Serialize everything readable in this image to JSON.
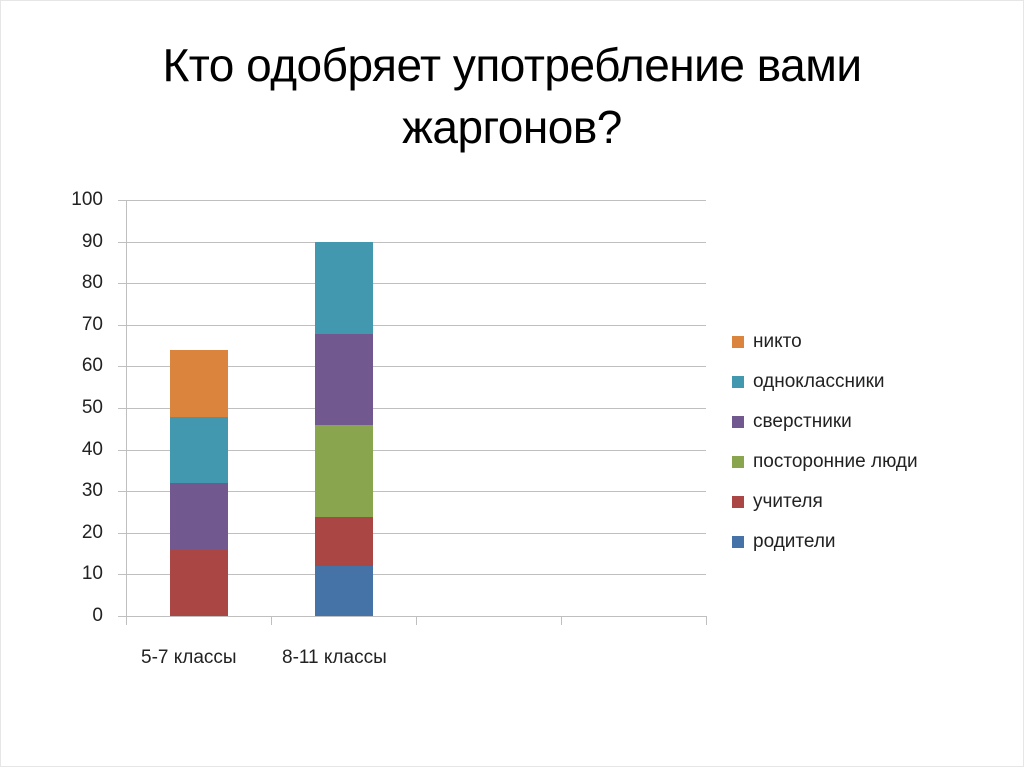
{
  "slide": {
    "title_lines": [
      "Кто одобряет употребление вами",
      "жаргонов?"
    ]
  },
  "chart_data": {
    "type": "bar",
    "stacked": true,
    "title": "Кто одобряет употребление вами жаргонов?",
    "xlabel": "",
    "ylabel": "",
    "ylim": [
      0,
      100
    ],
    "yticks": [
      0,
      10,
      20,
      30,
      40,
      50,
      60,
      70,
      80,
      90,
      100
    ],
    "grid": true,
    "legend_position": "right",
    "categories": [
      "5-7 классы",
      "8-11 классы",
      "",
      ""
    ],
    "series": [
      {
        "name": "родители",
        "color": "#4572A7",
        "values": [
          0,
          12,
          0,
          0
        ]
      },
      {
        "name": "учителя",
        "color": "#AA4643",
        "values": [
          16,
          12,
          0,
          0
        ]
      },
      {
        "name": "посторонние люди",
        "color": "#89A54E",
        "values": [
          0,
          22,
          0,
          0
        ]
      },
      {
        "name": "сверстники",
        "color": "#71588F",
        "values": [
          16,
          22,
          0,
          0
        ]
      },
      {
        "name": "одноклассники",
        "color": "#4198AF",
        "values": [
          16,
          22,
          0,
          0
        ]
      },
      {
        "name": "никто",
        "color": "#DB843D",
        "values": [
          16,
          0,
          0,
          0
        ]
      }
    ],
    "legend_order": [
      "никто",
      "одноклассники",
      "сверстники",
      "посторонние люди",
      "учителя",
      "родители"
    ]
  }
}
